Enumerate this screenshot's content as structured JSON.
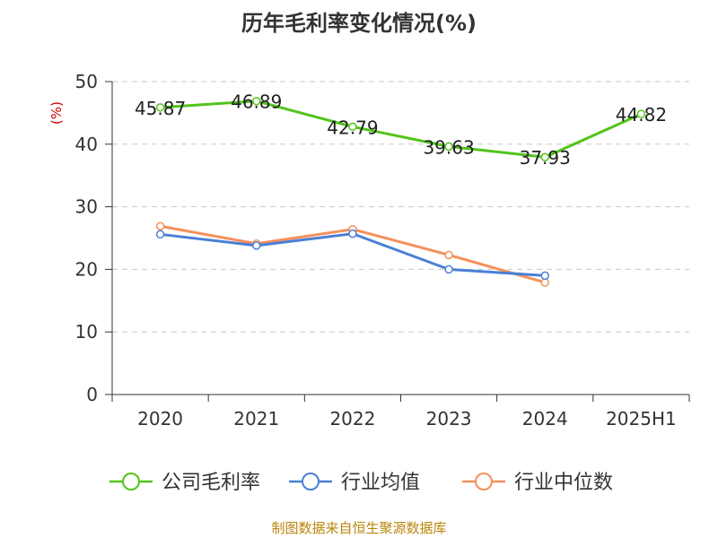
{
  "chart_data": {
    "type": "line",
    "title": "历年毛利率变化情况(%)",
    "ylabel": "(%)",
    "categories": [
      "2020",
      "2021",
      "2022",
      "2023",
      "2024",
      "2025H1"
    ],
    "ylim": [
      0,
      50
    ],
    "yticks": [
      "0",
      "10",
      "20",
      "30",
      "40",
      "50"
    ],
    "grid": true,
    "legend_position": "bottom",
    "series": [
      {
        "name": "公司毛利率",
        "color": "#52c41a",
        "values": [
          45.87,
          46.89,
          42.79,
          39.63,
          37.93,
          44.82
        ],
        "labels": [
          "45.87",
          "46.89",
          "42.79",
          "39.63",
          "37.93",
          "44.82"
        ]
      },
      {
        "name": "行业均值",
        "color": "#4a7fd6",
        "values": [
          25.6,
          23.8,
          25.7,
          20.0,
          19.0,
          null
        ]
      },
      {
        "name": "行业中位数",
        "color": "#f4905a",
        "values": [
          26.9,
          24.1,
          26.4,
          22.3,
          17.9,
          null
        ]
      }
    ]
  },
  "footer": "制图数据来自恒生聚源数据库"
}
